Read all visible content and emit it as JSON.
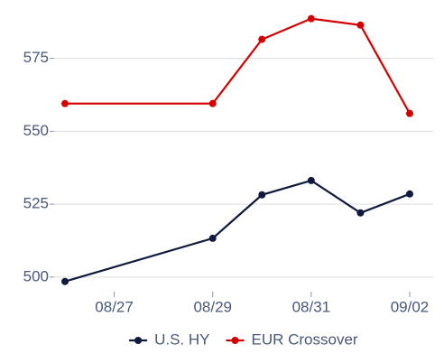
{
  "chart_data": {
    "type": "line",
    "x": [
      "08/26",
      "08/29",
      "08/30",
      "08/31",
      "09/01",
      "09/02"
    ],
    "xticks": [
      "08/27",
      "08/29",
      "08/31",
      "09/02"
    ],
    "series": [
      {
        "name": "U.S. HY",
        "color": "#0f1a3c",
        "values": [
          498.5,
          513.3,
          528.2,
          533.1,
          522,
          528.5
        ]
      },
      {
        "name": "EUR Crossover",
        "color": "#d40000",
        "values": [
          559.5,
          559.5,
          581.5,
          588.6,
          586.4,
          556.1
        ]
      }
    ],
    "ylim": [
      495,
      595
    ],
    "yticks": [
      500,
      525,
      550,
      575
    ],
    "grid": true,
    "legend": "bottom"
  }
}
